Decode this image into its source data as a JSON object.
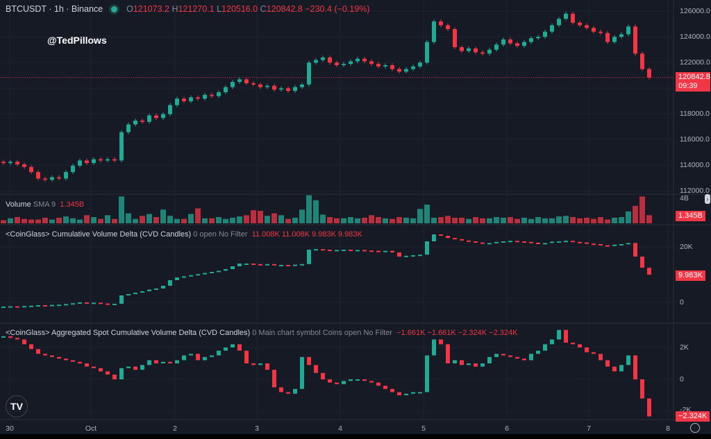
{
  "header": {
    "symbol": "BTCUSDT · 1h · Binance",
    "status_color": "#22ab94",
    "o_label": "O",
    "o": "121073.2",
    "h_label": "H",
    "h": "121270.1",
    "l_label": "L",
    "l": "120516.0",
    "c_label": "C",
    "c": "120842.8",
    "change": "−230.4 (−0.19%)"
  },
  "watermark": "@TedPillows",
  "price_axis": {
    "ticks": [
      "126000.0",
      "124000.0",
      "122000.0",
      "118000.0",
      "116000.0",
      "114000.0",
      "112000.0"
    ],
    "last_price": "120842.8",
    "countdown": "09:39"
  },
  "volume": {
    "label": "Volume",
    "sma": "SMA 9",
    "value": "1.345B",
    "tick": "4B"
  },
  "cvd": {
    "label": "<CoinGlass> Cumulative Volume Delta (CVD Candles)",
    "params": "0 open No Filter",
    "values": "11.008K  11.008K  9.983K  9.983K",
    "ticks": [
      "20K",
      "0"
    ],
    "last": "9.983K"
  },
  "spot_cvd": {
    "label": "<CoinGlass> Aggregated Spot Cumulative Volume Delta (CVD Candles)",
    "params": "0 Main chart symbol Coins open No Filter",
    "values": "−1.661K  −1.661K  −2.324K  −2.324K",
    "ticks": [
      "2K",
      "0",
      "-2K"
    ],
    "last": "−2.324K"
  },
  "time_axis": [
    "30",
    "Oct",
    "2",
    "3",
    "4",
    "5",
    "6",
    "7",
    "8"
  ],
  "colors": {
    "up": "#22ab94",
    "down": "#f23645",
    "bg": "#161a25"
  },
  "chart_data": {
    "type": "candlestick",
    "price_range": [
      112000,
      126000
    ],
    "closes": [
      114200,
      114300,
      114100,
      113900,
      113500,
      113000,
      112900,
      113100,
      113000,
      113500,
      114000,
      114400,
      114200,
      114500,
      114400,
      114500,
      114400,
      116600,
      117200,
      117500,
      117400,
      117900,
      117700,
      118000,
      118700,
      119200,
      119000,
      119300,
      119200,
      119500,
      119400,
      119700,
      120100,
      120500,
      120700,
      120400,
      120300,
      120100,
      120200,
      119900,
      120000,
      119800,
      120100,
      120300,
      122000,
      122200,
      122400,
      122000,
      121800,
      121900,
      122100,
      122300,
      122100,
      121900,
      121700,
      121800,
      121500,
      121300,
      121500,
      121700,
      122000,
      123600,
      125200,
      124900,
      124600,
      123200,
      122900,
      123100,
      122800,
      122700,
      123000,
      123400,
      123800,
      123500,
      123300,
      123600,
      123900,
      124000,
      124400,
      124900,
      125400,
      125800,
      125100,
      124900,
      124700,
      124400,
      124300,
      123600,
      124000,
      124200,
      124800,
      122700,
      121500,
      120842.8
    ],
    "volume_B": [
      0.5,
      0.8,
      1.0,
      0.7,
      0.6,
      0.6,
      0.9,
      0.6,
      0.9,
      1.1,
      0.8,
      0.6,
      1.3,
      1.0,
      0.7,
      1.3,
      0.7,
      4.3,
      1.6,
      0.7,
      1.2,
      1.5,
      1.0,
      2.2,
      1.2,
      0.7,
      0.7,
      1.5,
      2.4,
      0.8,
      0.8,
      1.0,
      0.7,
      0.9,
      1.1,
      1.3,
      2.1,
      2.0,
      1.2,
      1.6,
      1.3,
      0.7,
      0.9,
      2.2,
      4.5,
      3.7,
      1.4,
      1.0,
      0.8,
      0.8,
      1.0,
      0.8,
      0.9,
      1.3,
      1.0,
      0.8,
      0.7,
      1.0,
      0.9,
      0.8,
      2.3,
      3.0,
      0.9,
      1.0,
      1.2,
      0.9,
      0.9,
      0.7,
      1.0,
      0.8,
      0.8,
      1.0,
      0.9,
      1.0,
      0.7,
      0.9,
      0.7,
      1.0,
      0.8,
      0.8,
      1.1,
      1.2,
      1.0,
      0.8,
      0.9,
      0.7,
      1.0,
      0.6,
      0.9,
      1.0,
      1.9,
      2.8,
      4.3,
      1.3
    ],
    "cvd_K": [
      -1.5,
      -1.4,
      -1.5,
      -1.3,
      -1.2,
      -1.0,
      -1.2,
      -0.9,
      -0.8,
      -0.6,
      -0.3,
      0.0,
      -0.2,
      -0.1,
      -0.4,
      -0.5,
      -0.5,
      2.5,
      3.0,
      3.5,
      4.0,
      4.6,
      5.0,
      6.0,
      8.0,
      9.0,
      9.4,
      9.8,
      10.2,
      10.6,
      11.0,
      11.4,
      12.0,
      13.0,
      14.0,
      14.0,
      13.8,
      13.6,
      13.8,
      13.4,
      13.5,
      13.2,
      13.6,
      13.8,
      19.0,
      19.2,
      19.0,
      18.8,
      18.9,
      19.0,
      18.8,
      18.9,
      18.7,
      18.6,
      18.5,
      18.6,
      18.0,
      16.5,
      16.8,
      17.0,
      17.2,
      22.0,
      24.5,
      24.0,
      23.2,
      22.8,
      22.3,
      22.0,
      21.6,
      21.3,
      21.4,
      21.8,
      22.0,
      22.2,
      22.0,
      21.8,
      21.5,
      21.0,
      21.4,
      21.9,
      22.0,
      22.2,
      21.8,
      21.6,
      21.2,
      21.0,
      20.6,
      20.4,
      20.8,
      21.0,
      21.4,
      16.5,
      12.5,
      9.983
    ],
    "spot_cvd_K": [
      2.7,
      2.6,
      2.5,
      2.2,
      1.9,
      1.6,
      1.5,
      1.4,
      1.3,
      1.2,
      1.1,
      1.0,
      0.8,
      0.7,
      0.5,
      0.3,
      0.0,
      0.7,
      0.8,
      0.6,
      0.9,
      1.2,
      1.0,
      1.1,
      1.0,
      1.2,
      1.5,
      1.6,
      1.2,
      1.4,
      1.5,
      1.8,
      2.0,
      2.2,
      1.8,
      1.0,
      0.9,
      1.0,
      0.6,
      -0.5,
      -0.8,
      -0.9,
      -0.6,
      1.4,
      0.9,
      0.4,
      0.0,
      -0.2,
      -0.3,
      -0.1,
      0.0,
      0.0,
      -0.1,
      -0.2,
      -0.4,
      -0.6,
      -0.8,
      -1.0,
      -0.9,
      -0.8,
      -0.8,
      1.5,
      2.5,
      2.2,
      1.0,
      1.2,
      0.9,
      1.0,
      0.8,
      1.0,
      1.4,
      1.6,
      1.5,
      1.4,
      1.3,
      1.2,
      1.6,
      1.8,
      2.2,
      2.5,
      3.1,
      2.3,
      2.2,
      2.0,
      1.7,
      1.6,
      1.2,
      0.8,
      0.5,
      0.9,
      1.5,
      0.0,
      -1.2,
      -2.324
    ]
  }
}
